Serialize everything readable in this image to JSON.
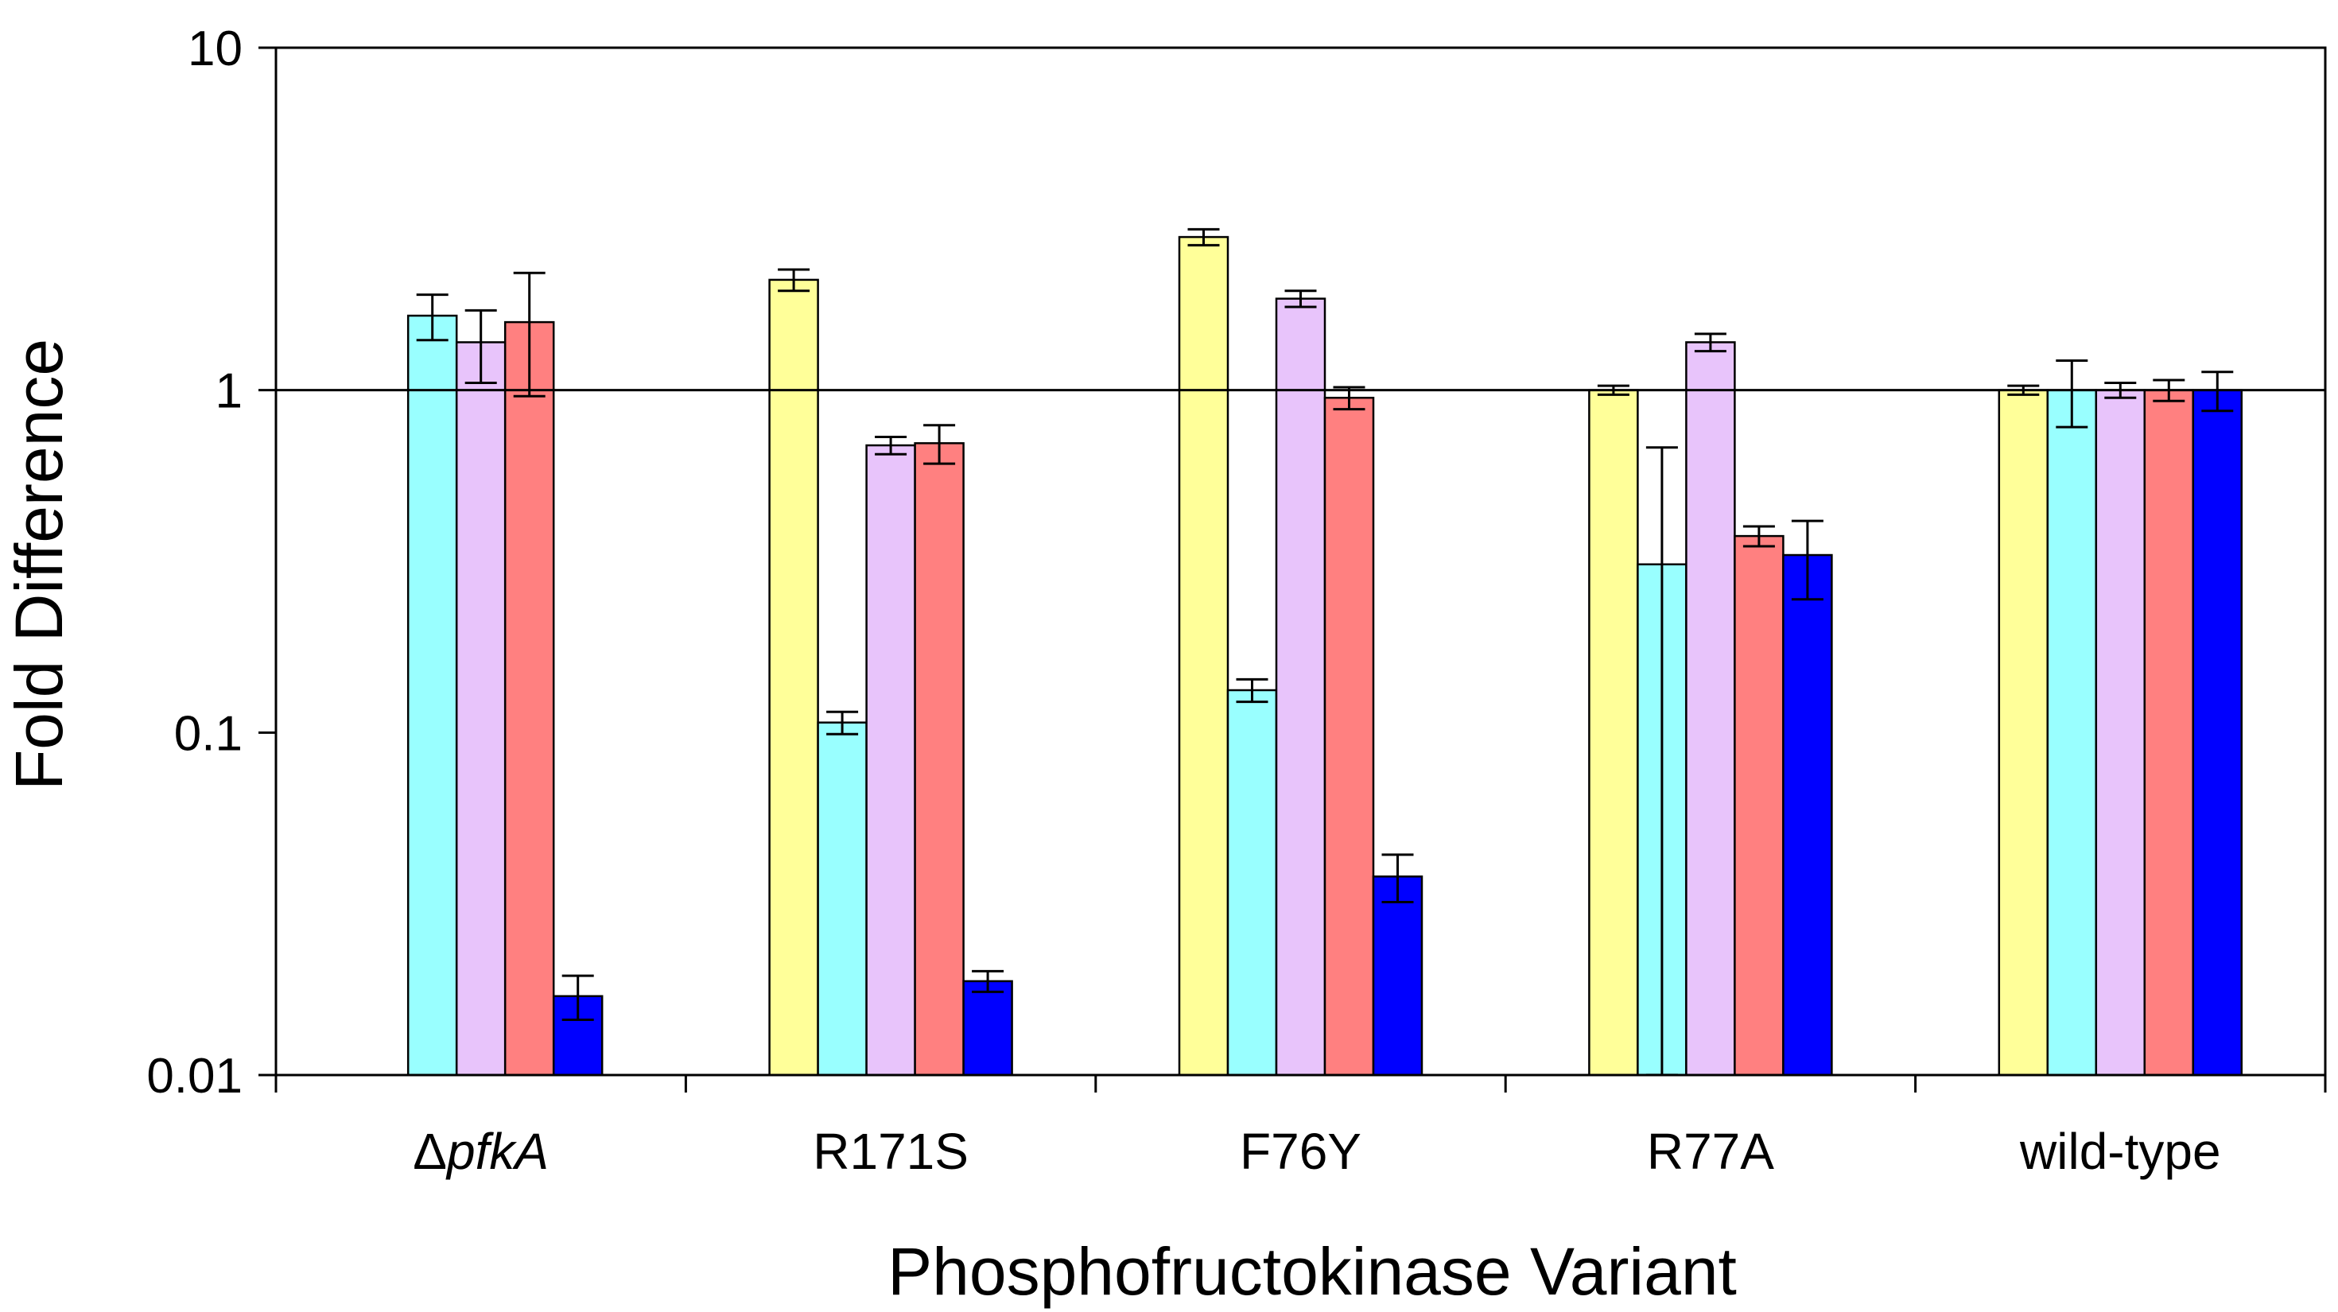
{
  "chart_data": {
    "type": "bar",
    "scale": "log",
    "title": "",
    "xlabel": "Phosphofructokinase Variant",
    "ylabel": "Fold Difference",
    "ylim": [
      0.01,
      10
    ],
    "yticks": [
      "10",
      "1",
      "0.1",
      "0.01"
    ],
    "ytick_values": [
      10,
      1,
      0.1,
      0.01
    ],
    "reference_line": 1,
    "categories": [
      {
        "label": "Δ",
        "italic": "pfkA"
      },
      {
        "label": "R171S",
        "italic": ""
      },
      {
        "label": "F76Y",
        "italic": ""
      },
      {
        "label": "R77A",
        "italic": ""
      },
      {
        "label": "wild-type",
        "italic": ""
      }
    ],
    "series": [
      {
        "name": "yellow",
        "color": "#ffff99",
        "values": [
          null,
          2.1,
          2.8,
          1.0,
          1.0
        ],
        "errors": [
          null,
          0.15,
          0.15,
          0.03,
          0.03
        ]
      },
      {
        "name": "cyan",
        "color": "#99ffff",
        "values": [
          1.65,
          0.107,
          0.133,
          0.31,
          1.0
        ],
        "errors": [
          0.25,
          0.008,
          0.01,
          0.37,
          0.22
        ]
      },
      {
        "name": "lavender",
        "color": "#e8c4fb",
        "values": [
          1.38,
          0.69,
          1.85,
          1.38,
          1.0
        ],
        "errors": [
          0.33,
          0.04,
          0.1,
          0.08,
          0.05
        ]
      },
      {
        "name": "salmon",
        "color": "#ff8080",
        "values": [
          1.58,
          0.7,
          0.95,
          0.375,
          1.0
        ],
        "errors": [
          0.62,
          0.09,
          0.07,
          0.025,
          0.07
        ]
      },
      {
        "name": "blue",
        "color": "#0000ff",
        "values": [
          0.017,
          0.0188,
          0.038,
          0.33,
          1.0
        ],
        "errors": [
          0.0025,
          0.0013,
          0.006,
          0.085,
          0.13
        ]
      }
    ]
  }
}
